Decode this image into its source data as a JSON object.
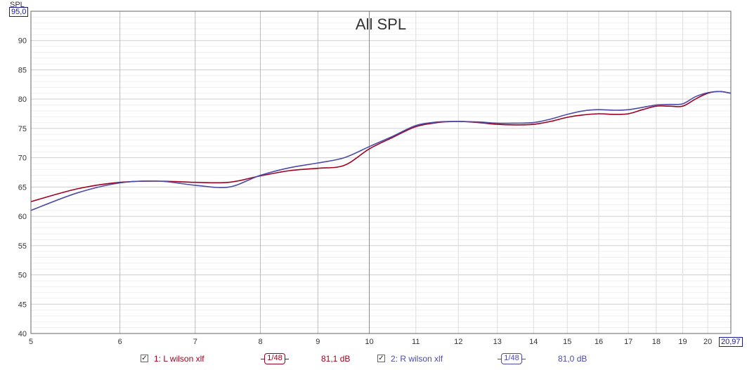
{
  "chart_data": {
    "type": "line",
    "title": "All SPL",
    "ylabel": "SPL",
    "xlabel": "",
    "x_scale": "log",
    "xlim": [
      5,
      20.97
    ],
    "ylim": [
      40,
      95
    ],
    "x_ticks": [
      5,
      6,
      7,
      8,
      9,
      10,
      11,
      12,
      13,
      14,
      15,
      16,
      17,
      18,
      19,
      20
    ],
    "y_ticks": [
      40,
      45,
      50,
      55,
      60,
      65,
      70,
      75,
      80,
      85,
      90
    ],
    "y_max_label": "95,0",
    "x_max_label": "20,97",
    "grid": true,
    "legend_position": "bottom",
    "series": [
      {
        "name": "1: L wilson xlf",
        "color": "#a0001e",
        "x": [
          5,
          5.5,
          6,
          6.5,
          7,
          7.5,
          8,
          8.5,
          9,
          9.5,
          10,
          10.5,
          11,
          11.5,
          12,
          12.5,
          13,
          13.5,
          14,
          14.5,
          15,
          15.5,
          16,
          16.5,
          17,
          17.5,
          18,
          18.5,
          19,
          19.5,
          20,
          20.5,
          20.97
        ],
        "values": [
          62.5,
          64.7,
          65.8,
          66.0,
          65.8,
          65.8,
          66.9,
          67.8,
          68.2,
          68.7,
          71.5,
          73.5,
          75.3,
          76.0,
          76.2,
          76.0,
          75.7,
          75.6,
          75.7,
          76.2,
          76.9,
          77.3,
          77.5,
          77.4,
          77.5,
          78.2,
          78.8,
          78.8,
          78.8,
          80.0,
          81.0,
          81.3,
          81.0
        ],
        "smoothing": "1/48",
        "readout": "81,1 dB"
      },
      {
        "name": "2: R wilson xlf",
        "color": "#4b4ba8",
        "x": [
          5,
          5.5,
          6,
          6.5,
          7,
          7.5,
          8,
          8.5,
          9,
          9.5,
          10,
          10.5,
          11,
          11.5,
          12,
          12.5,
          13,
          13.5,
          14,
          14.5,
          15,
          15.5,
          16,
          16.5,
          17,
          17.5,
          18,
          18.5,
          19,
          19.5,
          20,
          20.5,
          20.97
        ],
        "values": [
          61.0,
          64.0,
          65.7,
          66.0,
          65.3,
          65.0,
          67.0,
          68.3,
          69.1,
          70.0,
          71.9,
          73.7,
          75.5,
          76.1,
          76.2,
          76.1,
          75.9,
          75.9,
          76.0,
          76.6,
          77.4,
          78.0,
          78.2,
          78.1,
          78.2,
          78.6,
          79.0,
          79.1,
          79.2,
          80.4,
          81.1,
          81.3,
          81.0
        ],
        "smoothing": "1/48",
        "readout": "81,0 dB"
      }
    ]
  }
}
